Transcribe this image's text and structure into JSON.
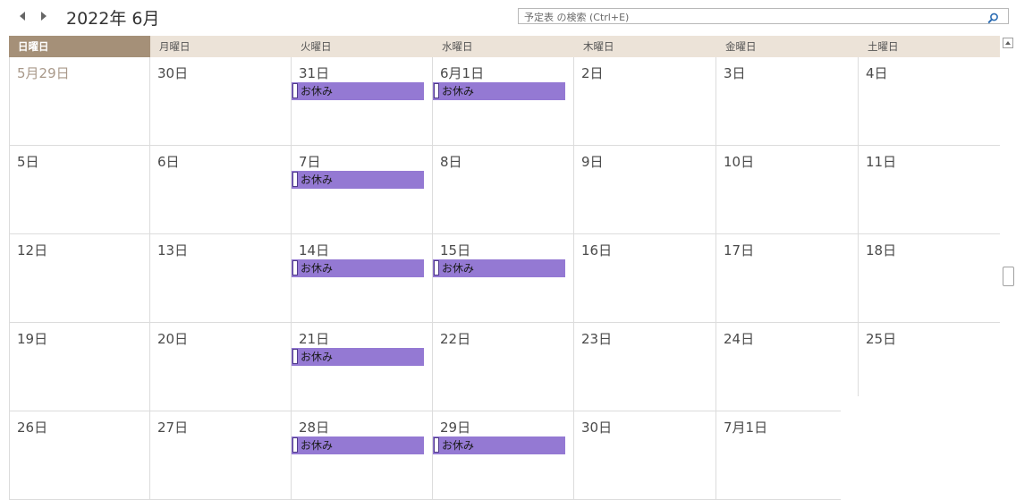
{
  "nav": {
    "prev_icon": "chevron-left-icon",
    "next_icon": "chevron-right-icon"
  },
  "title": "2022年 6月",
  "search": {
    "placeholder": "予定表 の検索 (Ctrl+E)",
    "icon": "search-icon"
  },
  "weekdays": [
    "日曜日",
    "月曜日",
    "火曜日",
    "水曜日",
    "木曜日",
    "金曜日",
    "土曜日"
  ],
  "highlighted_weekday_index": 0,
  "weeks": [
    [
      {
        "label": "5月29日",
        "other_month": true,
        "events": []
      },
      {
        "label": "30日",
        "events": []
      },
      {
        "label": "31日",
        "events": [
          "お休み"
        ]
      },
      {
        "label": "6月1日",
        "events": [
          "お休み"
        ]
      },
      {
        "label": "2日",
        "events": []
      },
      {
        "label": "3日",
        "events": []
      },
      {
        "label": "4日",
        "events": []
      }
    ],
    [
      {
        "label": "5日",
        "events": []
      },
      {
        "label": "6日",
        "events": []
      },
      {
        "label": "7日",
        "events": [
          "お休み"
        ]
      },
      {
        "label": "8日",
        "events": []
      },
      {
        "label": "9日",
        "events": []
      },
      {
        "label": "10日",
        "events": []
      },
      {
        "label": "11日",
        "events": []
      }
    ],
    [
      {
        "label": "12日",
        "events": []
      },
      {
        "label": "13日",
        "events": []
      },
      {
        "label": "14日",
        "events": [
          "お休み"
        ]
      },
      {
        "label": "15日",
        "events": [
          "お休み"
        ]
      },
      {
        "label": "16日",
        "events": []
      },
      {
        "label": "17日",
        "events": []
      },
      {
        "label": "18日",
        "events": []
      }
    ],
    [
      {
        "label": "19日",
        "events": []
      },
      {
        "label": "20日",
        "events": []
      },
      {
        "label": "21日",
        "events": [
          "お休み"
        ]
      },
      {
        "label": "22日",
        "events": []
      },
      {
        "label": "23日",
        "events": []
      },
      {
        "label": "24日",
        "events": []
      },
      {
        "label": "25日",
        "events": []
      }
    ],
    [
      {
        "label": "26日",
        "events": []
      },
      {
        "label": "27日",
        "events": []
      },
      {
        "label": "28日",
        "events": [
          "お休み"
        ]
      },
      {
        "label": "29日",
        "events": [
          "お休み"
        ]
      },
      {
        "label": "30日",
        "events": []
      },
      {
        "label": "7月1日",
        "events": []
      },
      {
        "label": "",
        "events": []
      }
    ]
  ],
  "colors": {
    "header_bg": "#ece3d8",
    "today_header_bg": "#a59078",
    "event_bg": "#9479d3",
    "other_month_text": "#a9998a"
  }
}
